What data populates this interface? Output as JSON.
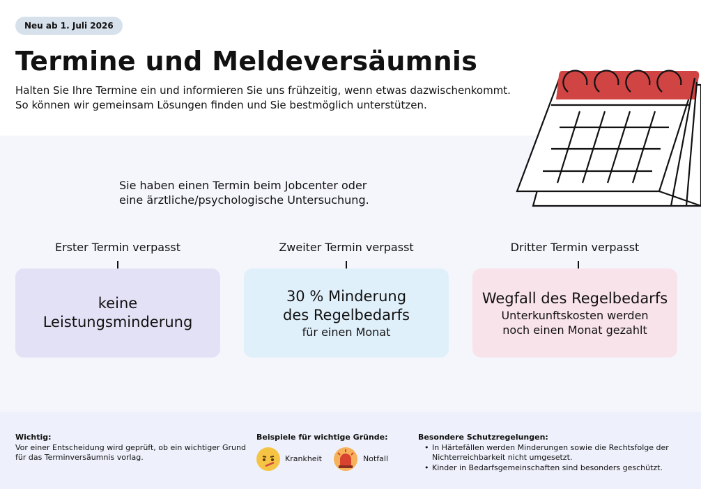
{
  "badge": "Neu ab 1. Juli 2026",
  "header": {
    "title": "Termine und Meldeversäumnis",
    "subtitle": [
      "Halten Sie Ihre Termine ein und informieren Sie uns frühzeitig, wenn etwas dazwischenkommt.",
      "So können wir gemeinsam Lösungen finden und Sie bestmöglich unterstützen."
    ]
  },
  "intro": [
    "Sie haben einen Termin beim Jobcenter oder",
    "eine ärztliche/psychologische Untersuchung."
  ],
  "stages": [
    {
      "label": "Erster Termin verpasst",
      "result": [
        "keine",
        "Leistungsminderung"
      ]
    },
    {
      "label": "Zweiter Termin verpasst",
      "result": [
        "30 % Minderung",
        "des Regelbedarfs"
      ],
      "note": [
        "für einen Monat"
      ]
    },
    {
      "label": "Dritter Termin verpasst",
      "result": [
        "Wegfall des Regelbedarfs"
      ],
      "note": [
        "Unterkunftskosten werden",
        "noch einen Monat gezahlt"
      ]
    }
  ],
  "footer": {
    "important": {
      "heading": "Wichtig:",
      "text": [
        "Vor einer Entscheidung wird geprüft, ob ein wichtiger Grund",
        "für das Terminversäumnis vorlag."
      ]
    },
    "reasons": {
      "heading": "Beispiele für wichtige Gründe:",
      "items": [
        "Krankheit",
        "Notfall"
      ]
    },
    "protection": {
      "heading": "Besondere Schutzregelungen:",
      "items": [
        [
          "In Härtefällen werden Minderungen sowie die Rechtsfolge der",
          "Nichterreichbarkeit nicht umgesetzt."
        ],
        [
          "Kinder in Bedarfsgemeinschaften sind besonders geschützt."
        ]
      ]
    }
  }
}
